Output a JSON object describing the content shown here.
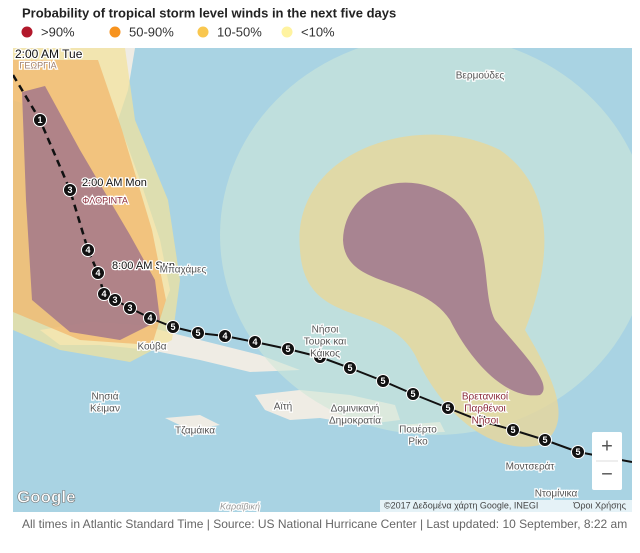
{
  "title": "Probability of tropical storm level winds in the next five days",
  "legend": [
    {
      "label": ">90%",
      "color": "#b2182b"
    },
    {
      "label": "50-90%",
      "color": "#f7931e"
    },
    {
      "label": "10-50%",
      "color": "#f9c74f"
    },
    {
      "label": "<10%",
      "color": "#fff3a0"
    }
  ],
  "map": {
    "labels": [
      {
        "lines": [
          "2:00 AM Tue"
        ]
      },
      {
        "lines": [
          "ΓΕΩΡΓΙΑ"
        ]
      },
      {
        "lines": [
          "Βερμούδες"
        ]
      },
      {
        "lines": [
          "2:00 AM Mon"
        ]
      },
      {
        "lines": [
          "ΦΛΟΡΙΝΤΑ"
        ]
      },
      {
        "lines": [
          "8:00 AM Sun"
        ]
      },
      {
        "lines": [
          "Μπαχάμες"
        ]
      },
      {
        "lines": [
          "Νήσοι",
          "Τουρκ και",
          "Κάικος"
        ]
      },
      {
        "lines": [
          "Κούβα"
        ]
      },
      {
        "lines": [
          "Νησιά",
          "Κέιμαν"
        ]
      },
      {
        "lines": [
          "Αϊτή"
        ]
      },
      {
        "lines": [
          "Δομινικανή",
          "Δημοκρατία"
        ]
      },
      {
        "lines": [
          "Πουέρτο",
          "Ρίκο"
        ]
      },
      {
        "lines": [
          "Τζαμάικα"
        ]
      },
      {
        "lines": [
          "Βρετανικοί",
          "Παρθένοι",
          "Νήσοι"
        ]
      },
      {
        "lines": [
          "Μοντσεράτ"
        ]
      },
      {
        "lines": [
          "Ντομίνικα"
        ]
      },
      {
        "lines": [
          "Καραϊβική"
        ]
      }
    ],
    "track": [
      1,
      3,
      4,
      4,
      4,
      3,
      3,
      4,
      5,
      5,
      4,
      4,
      5,
      5,
      5,
      5,
      5,
      5,
      5,
      5,
      5,
      5
    ],
    "logo": "Google",
    "attribution": "©2017 Δεδομένα χάρτη Google, INEGI",
    "terms": "Όροι Χρήσης",
    "zoom_in": "+",
    "zoom_out": "−"
  },
  "footer": "All times in Atlantic Standard Time | Source: US National Hurricane Center | Last updated: 10 September, 8:22 am"
}
